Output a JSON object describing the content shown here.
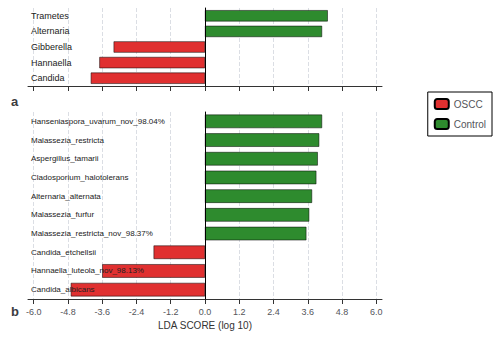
{
  "chart_data": [
    {
      "type": "bar",
      "orientation": "horizontal",
      "title": "a",
      "categories": [
        "Trametes",
        "Alternaria",
        "Gibberella",
        "Hannaella",
        "Candida"
      ],
      "series": [
        {
          "name": "OSCC",
          "color": "#e03030",
          "values": [
            null,
            null,
            -3.2,
            -3.7,
            -4.0
          ]
        },
        {
          "name": "Control",
          "color": "#2e8b2e",
          "values": [
            4.3,
            4.1,
            null,
            null,
            null
          ]
        }
      ],
      "xlim": [
        -6.2,
        6.2
      ],
      "xticks": [
        {
          "value": -6.0,
          "label": "-6.0"
        },
        {
          "value": -4.8,
          "label": "-4.8"
        },
        {
          "value": -3.6,
          "label": "-3.6"
        },
        {
          "value": -2.4,
          "label": "-2.4"
        },
        {
          "value": -1.2,
          "label": "-1.2"
        },
        {
          "value": 0.0,
          "label": "0.0"
        },
        {
          "value": 1.2,
          "label": "1.2"
        },
        {
          "value": 2.4,
          "label": "2.4"
        },
        {
          "value": 3.6,
          "label": "3.6"
        },
        {
          "value": 4.8,
          "label": "4.8"
        },
        {
          "value": 6.0,
          "label": "6.0"
        }
      ],
      "grid": true,
      "tick_labels": "y",
      "legend": "right"
    },
    {
      "type": "bar",
      "orientation": "horizontal",
      "title": "b",
      "categories": [
        "Hanseniaspora_uvarum_nov_98.04%",
        "Malassezia_restricta",
        "Aspergillus_tamarii",
        "Cladosporium_halotolerans",
        "Alternaria_alternata",
        "Malassezia_furfur",
        "Malassezia_restricta_nov_98.37%",
        "Candida_etchellsii",
        "Hannaella_luteola_nov_98.13%",
        "Candida_albicans"
      ],
      "series": [
        {
          "name": "OSCC",
          "color": "#e03030",
          "values": [
            null,
            null,
            null,
            null,
            null,
            null,
            null,
            -1.8,
            -3.6,
            -4.7
          ]
        },
        {
          "name": "Control",
          "color": "#2e8b2e",
          "values": [
            4.1,
            4.0,
            3.95,
            3.9,
            3.75,
            3.65,
            3.55,
            null,
            null,
            null
          ]
        }
      ],
      "xlabel": "LDA SCORE (log 10)",
      "xlim": [
        -6.2,
        6.2
      ],
      "xticks": [
        {
          "value": -6.0,
          "label": "-6.0"
        },
        {
          "value": -4.8,
          "label": "-4.8"
        },
        {
          "value": -3.6,
          "label": "-3.6"
        },
        {
          "value": -2.4,
          "label": "-2.4"
        },
        {
          "value": -1.2,
          "label": "-1.2"
        },
        {
          "value": 0.0,
          "label": "0.0"
        },
        {
          "value": 1.2,
          "label": "1.2"
        },
        {
          "value": 2.4,
          "label": "2.4"
        },
        {
          "value": 3.6,
          "label": "3.6"
        },
        {
          "value": 4.8,
          "label": "4.8"
        },
        {
          "value": 6.0,
          "label": "6.0"
        }
      ],
      "grid": true
    }
  ]
}
